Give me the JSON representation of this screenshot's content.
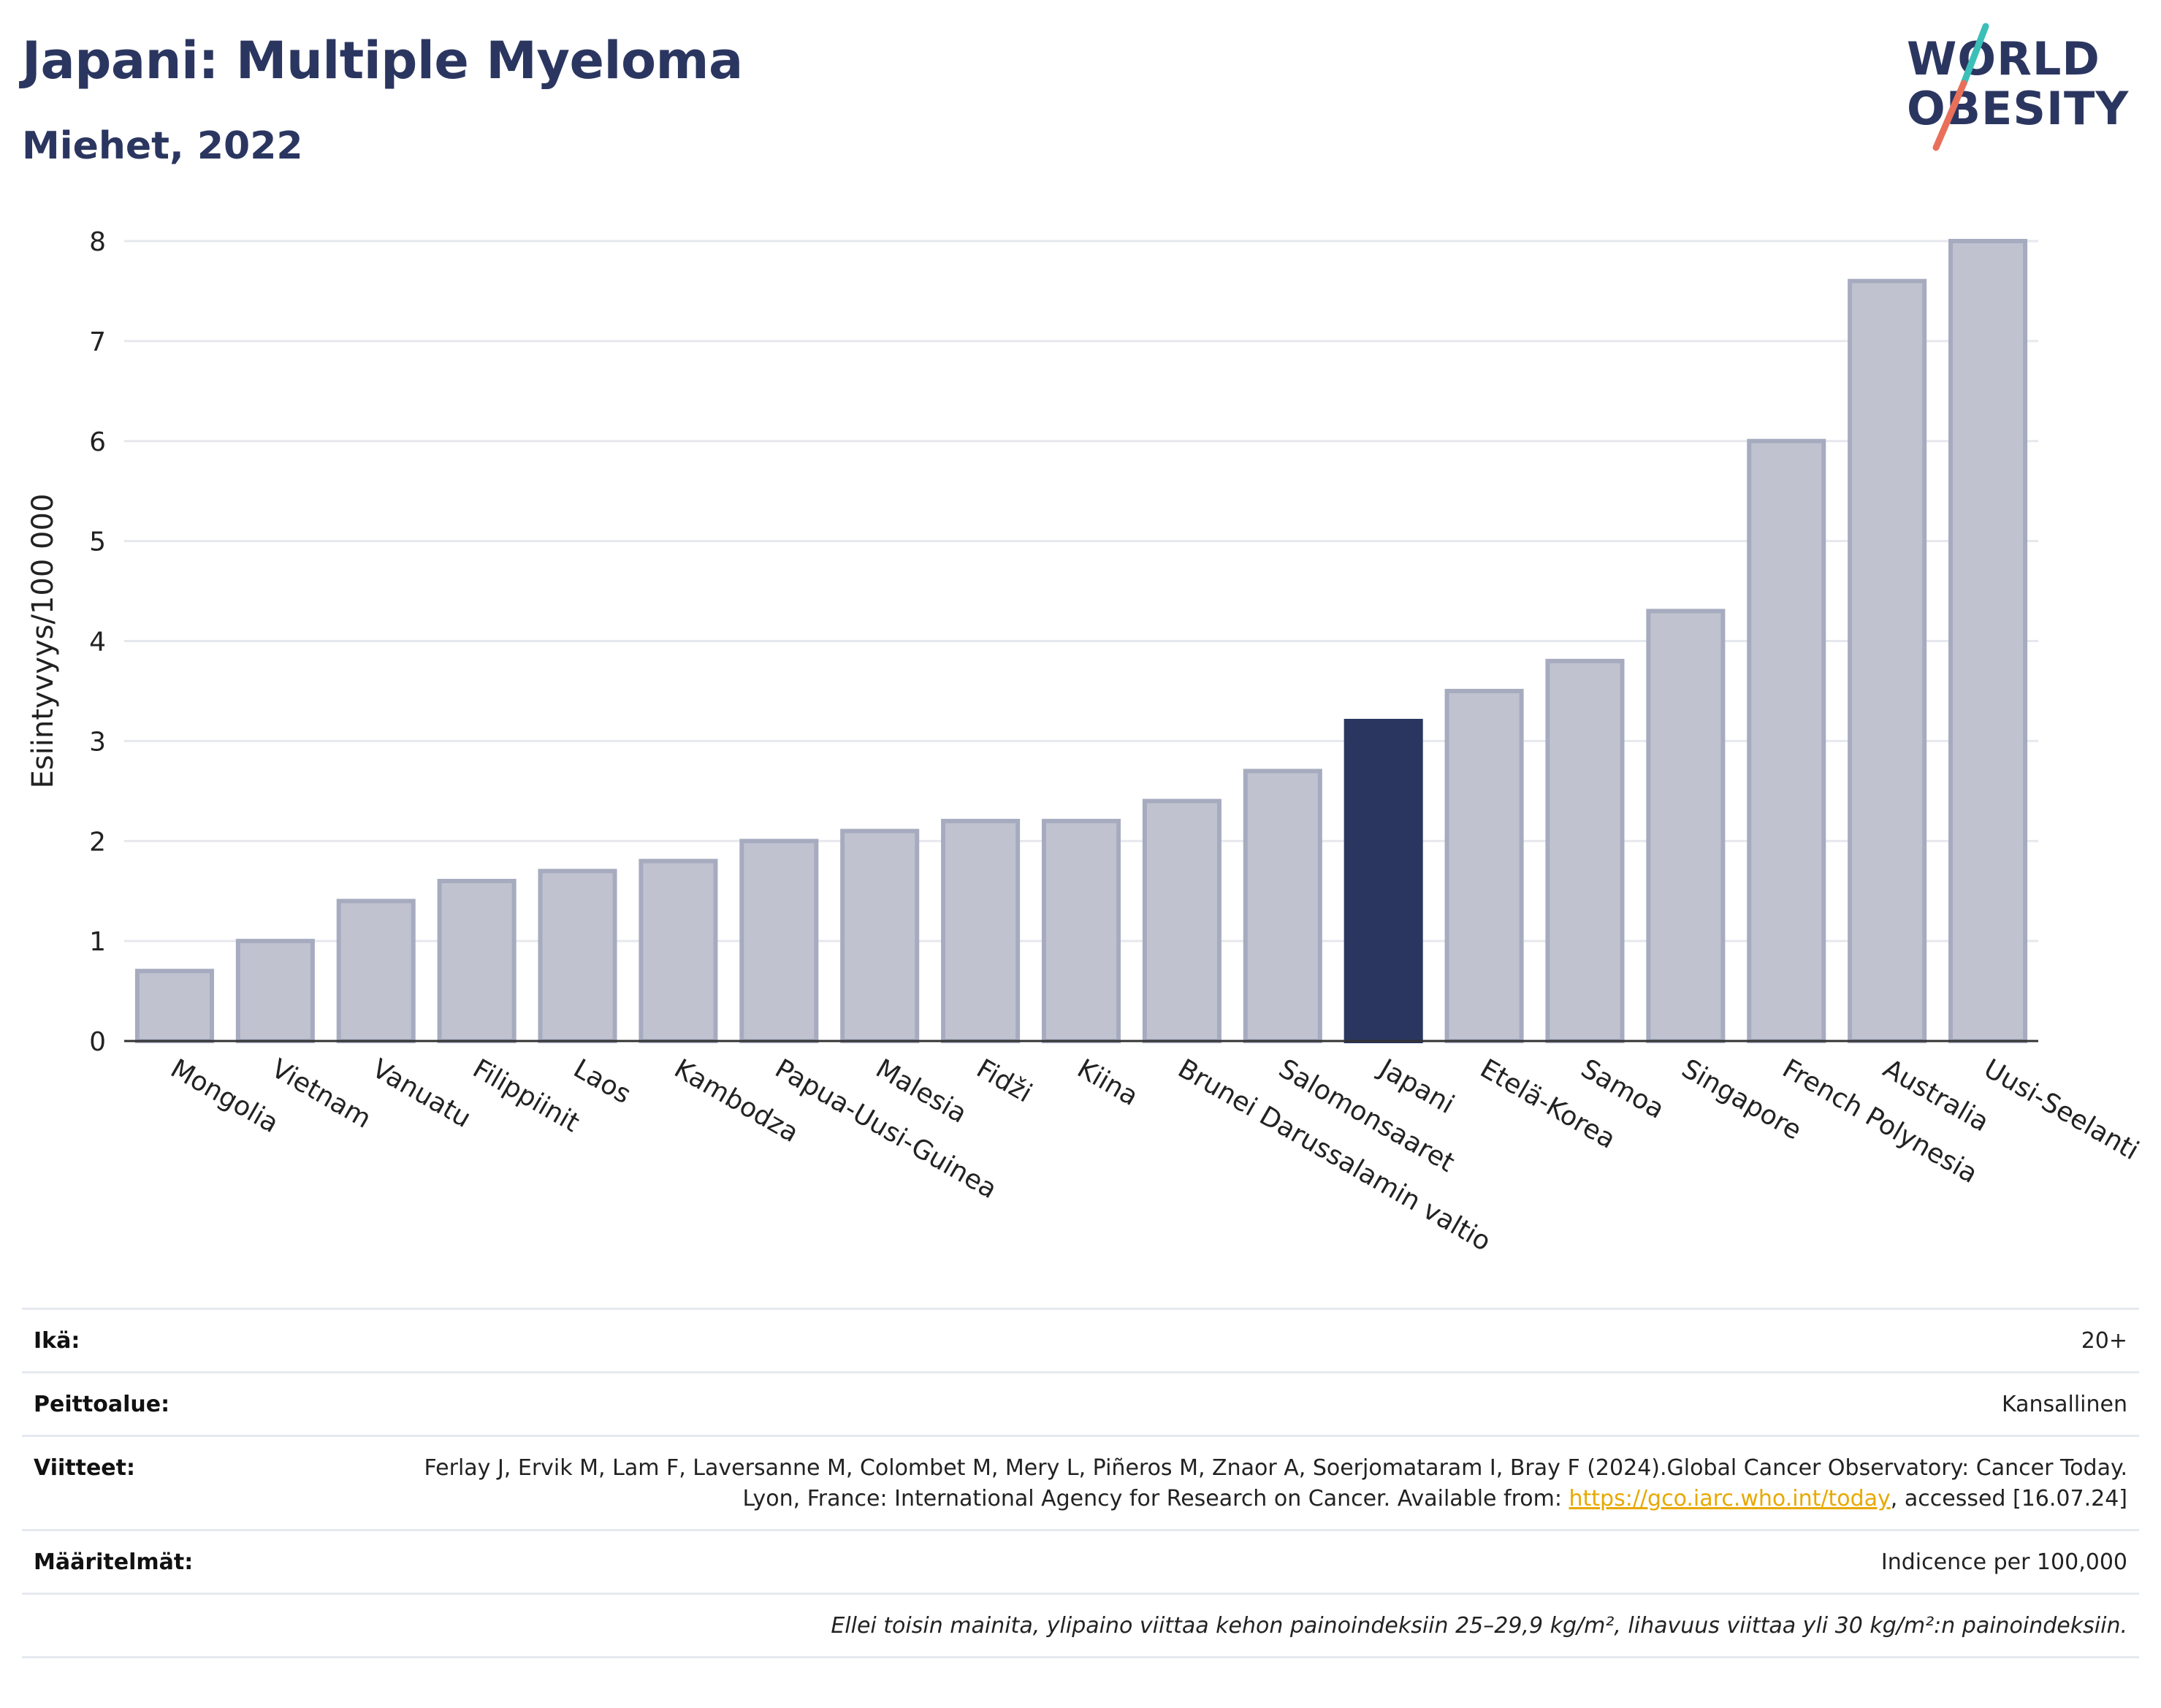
{
  "header": {
    "title": "Japani: Multiple Myeloma",
    "subtitle": "Miehet, 2022"
  },
  "logo": {
    "line1": "WORLD",
    "line2": "OBESITY",
    "slash_color_top": "#3bbfb8",
    "slash_color_bottom": "#e8705a"
  },
  "colors": {
    "bar_default": "#c0c3cf",
    "bar_default_border": "#a6abbf",
    "bar_highlight": "#2b3660",
    "grid": "#e6e8ee",
    "axis": "#333333"
  },
  "chart_data": {
    "type": "bar",
    "ylabel": "Esiintyvyys/100 000",
    "xlabel": "",
    "ylim": [
      0,
      8
    ],
    "yticks": [
      0,
      1,
      2,
      3,
      4,
      5,
      6,
      7,
      8
    ],
    "grid": true,
    "highlight": "Japani",
    "categories": [
      "Mongolia",
      "Vietnam",
      "Vanuatu",
      "Filippiinit",
      "Laos",
      "Kambodza",
      "Papua-Uusi-Guinea",
      "Malesia",
      "Fidži",
      "Kiina",
      "Brunei Darussalamin valtio",
      "Salomonsaaret",
      "Japani",
      "Etelä-Korea",
      "Samoa",
      "Singapore",
      "French Polynesia",
      "Australia",
      "Uusi-Seelanti"
    ],
    "values": [
      0.7,
      1.0,
      1.4,
      1.6,
      1.7,
      1.8,
      2.0,
      2.1,
      2.2,
      2.2,
      2.4,
      2.7,
      3.2,
      3.5,
      3.8,
      4.3,
      6.0,
      7.6,
      8.0
    ]
  },
  "info": {
    "age_label": "Ikä:",
    "age_value": "20+",
    "coverage_label": "Peittoalue:",
    "coverage_value": "Kansallinen",
    "refs_label": "Viitteet:",
    "refs_text": "Ferlay J, Ervik M, Lam F, Laversanne M, Colombet M, Mery L, Piñeros M, Znaor A, Soerjomataram I, Bray F (2024).Global Cancer Observatory: Cancer Today. Lyon, France: International Agency for Research on Cancer. Available from: ",
    "refs_link": "https://gco.iarc.who.int/today",
    "refs_suffix": ", accessed [16.07.24]",
    "defs_label": "Määritelmät:",
    "defs_value": "Indicence per 100,000",
    "note": "Ellei toisin mainita, ylipaino viittaa kehon painoindeksiin 25–29,9 kg/m², lihavuus viittaa yli 30 kg/m²:n painoindeksiin."
  }
}
